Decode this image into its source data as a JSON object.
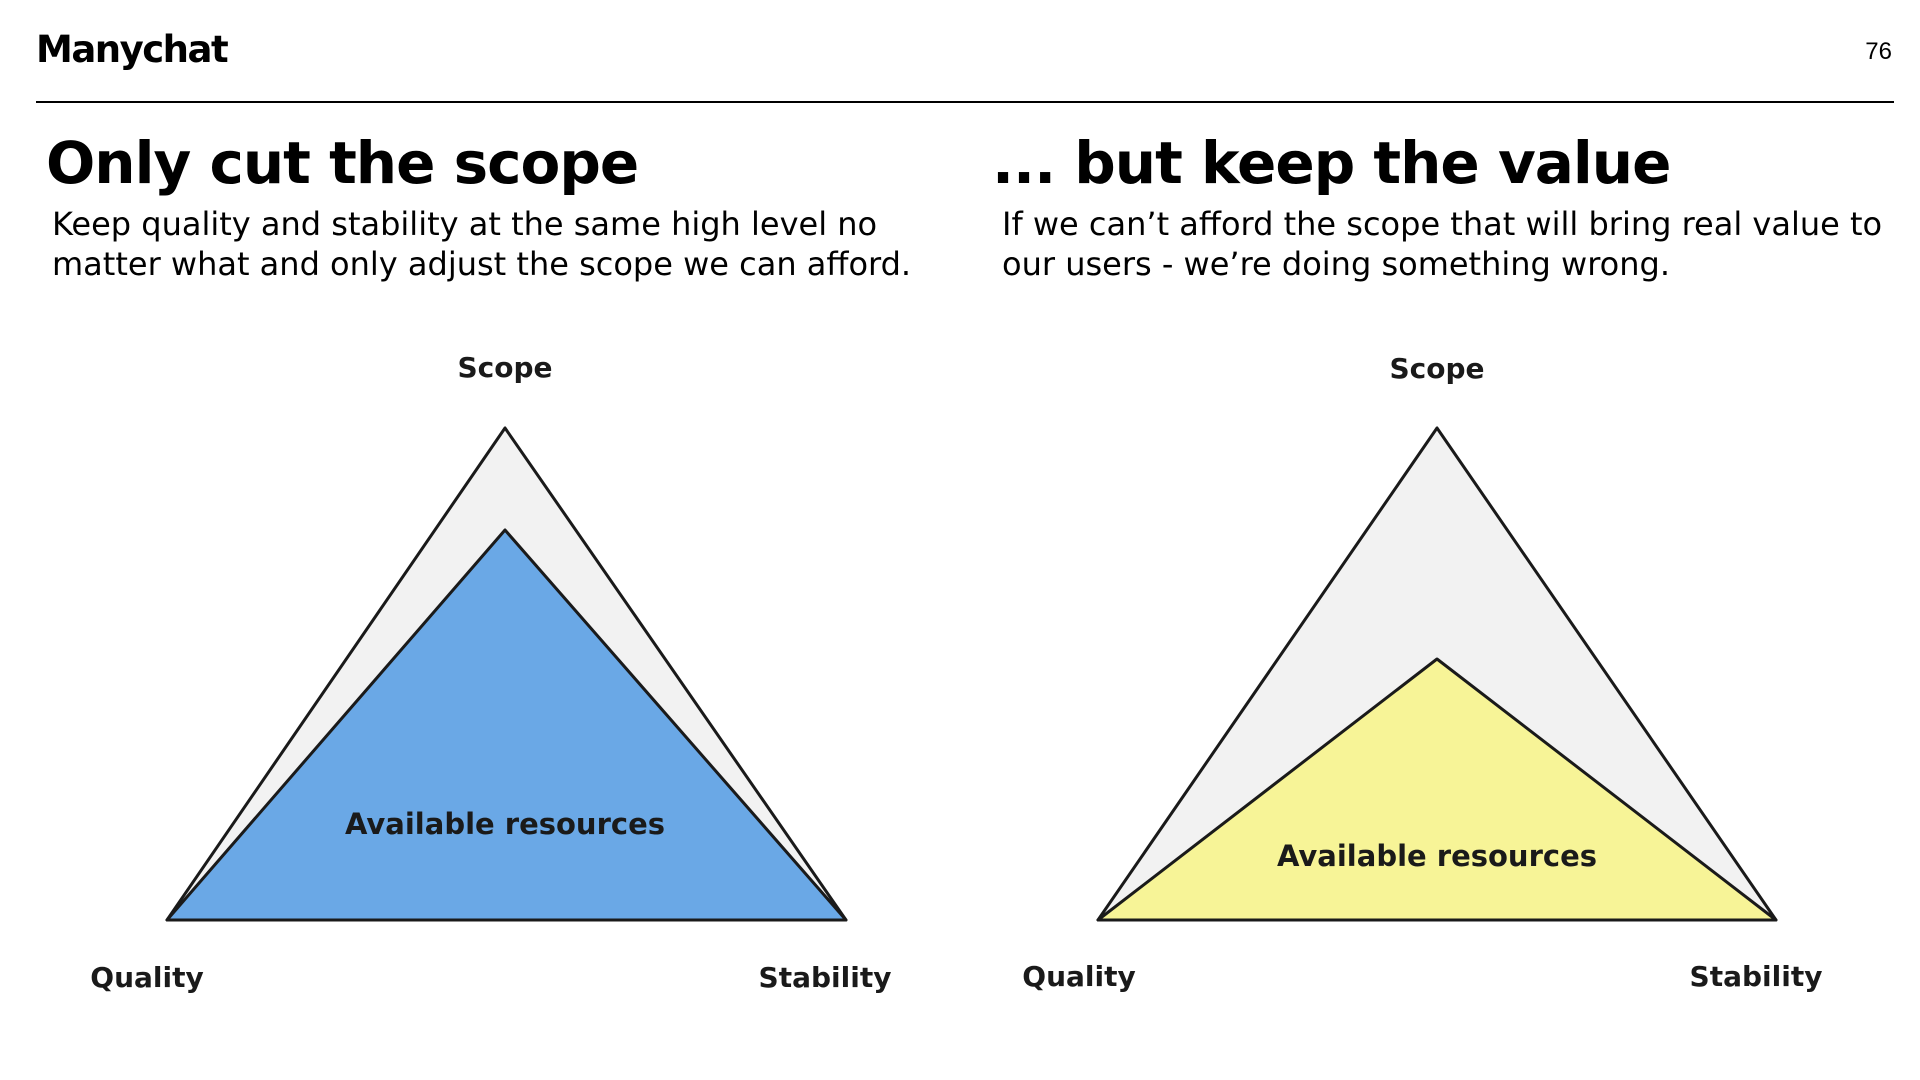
{
  "header": {
    "logo": "Manychat",
    "page_number": "76"
  },
  "left": {
    "title": "Only cut the scope",
    "description": "Keep quality and stability at the same high level no matter what and only adjust the scope we can afford.",
    "diagram": {
      "labels": {
        "top": "Scope",
        "left": "Quality",
        "right": "Stability"
      },
      "inner_label": "Available resources",
      "inner_color": "#6aa8e6",
      "outer_color": "#f2f2f2"
    }
  },
  "right": {
    "title": "... but keep the value",
    "description": "If we can’t afford the scope that will bring real value to our users - we’re doing something wrong.",
    "diagram": {
      "labels": {
        "top": "Scope",
        "left": "Quality",
        "right": "Stability"
      },
      "inner_label": "Available resources",
      "inner_color": "#f7f497",
      "outer_color": "#f2f2f2"
    }
  }
}
